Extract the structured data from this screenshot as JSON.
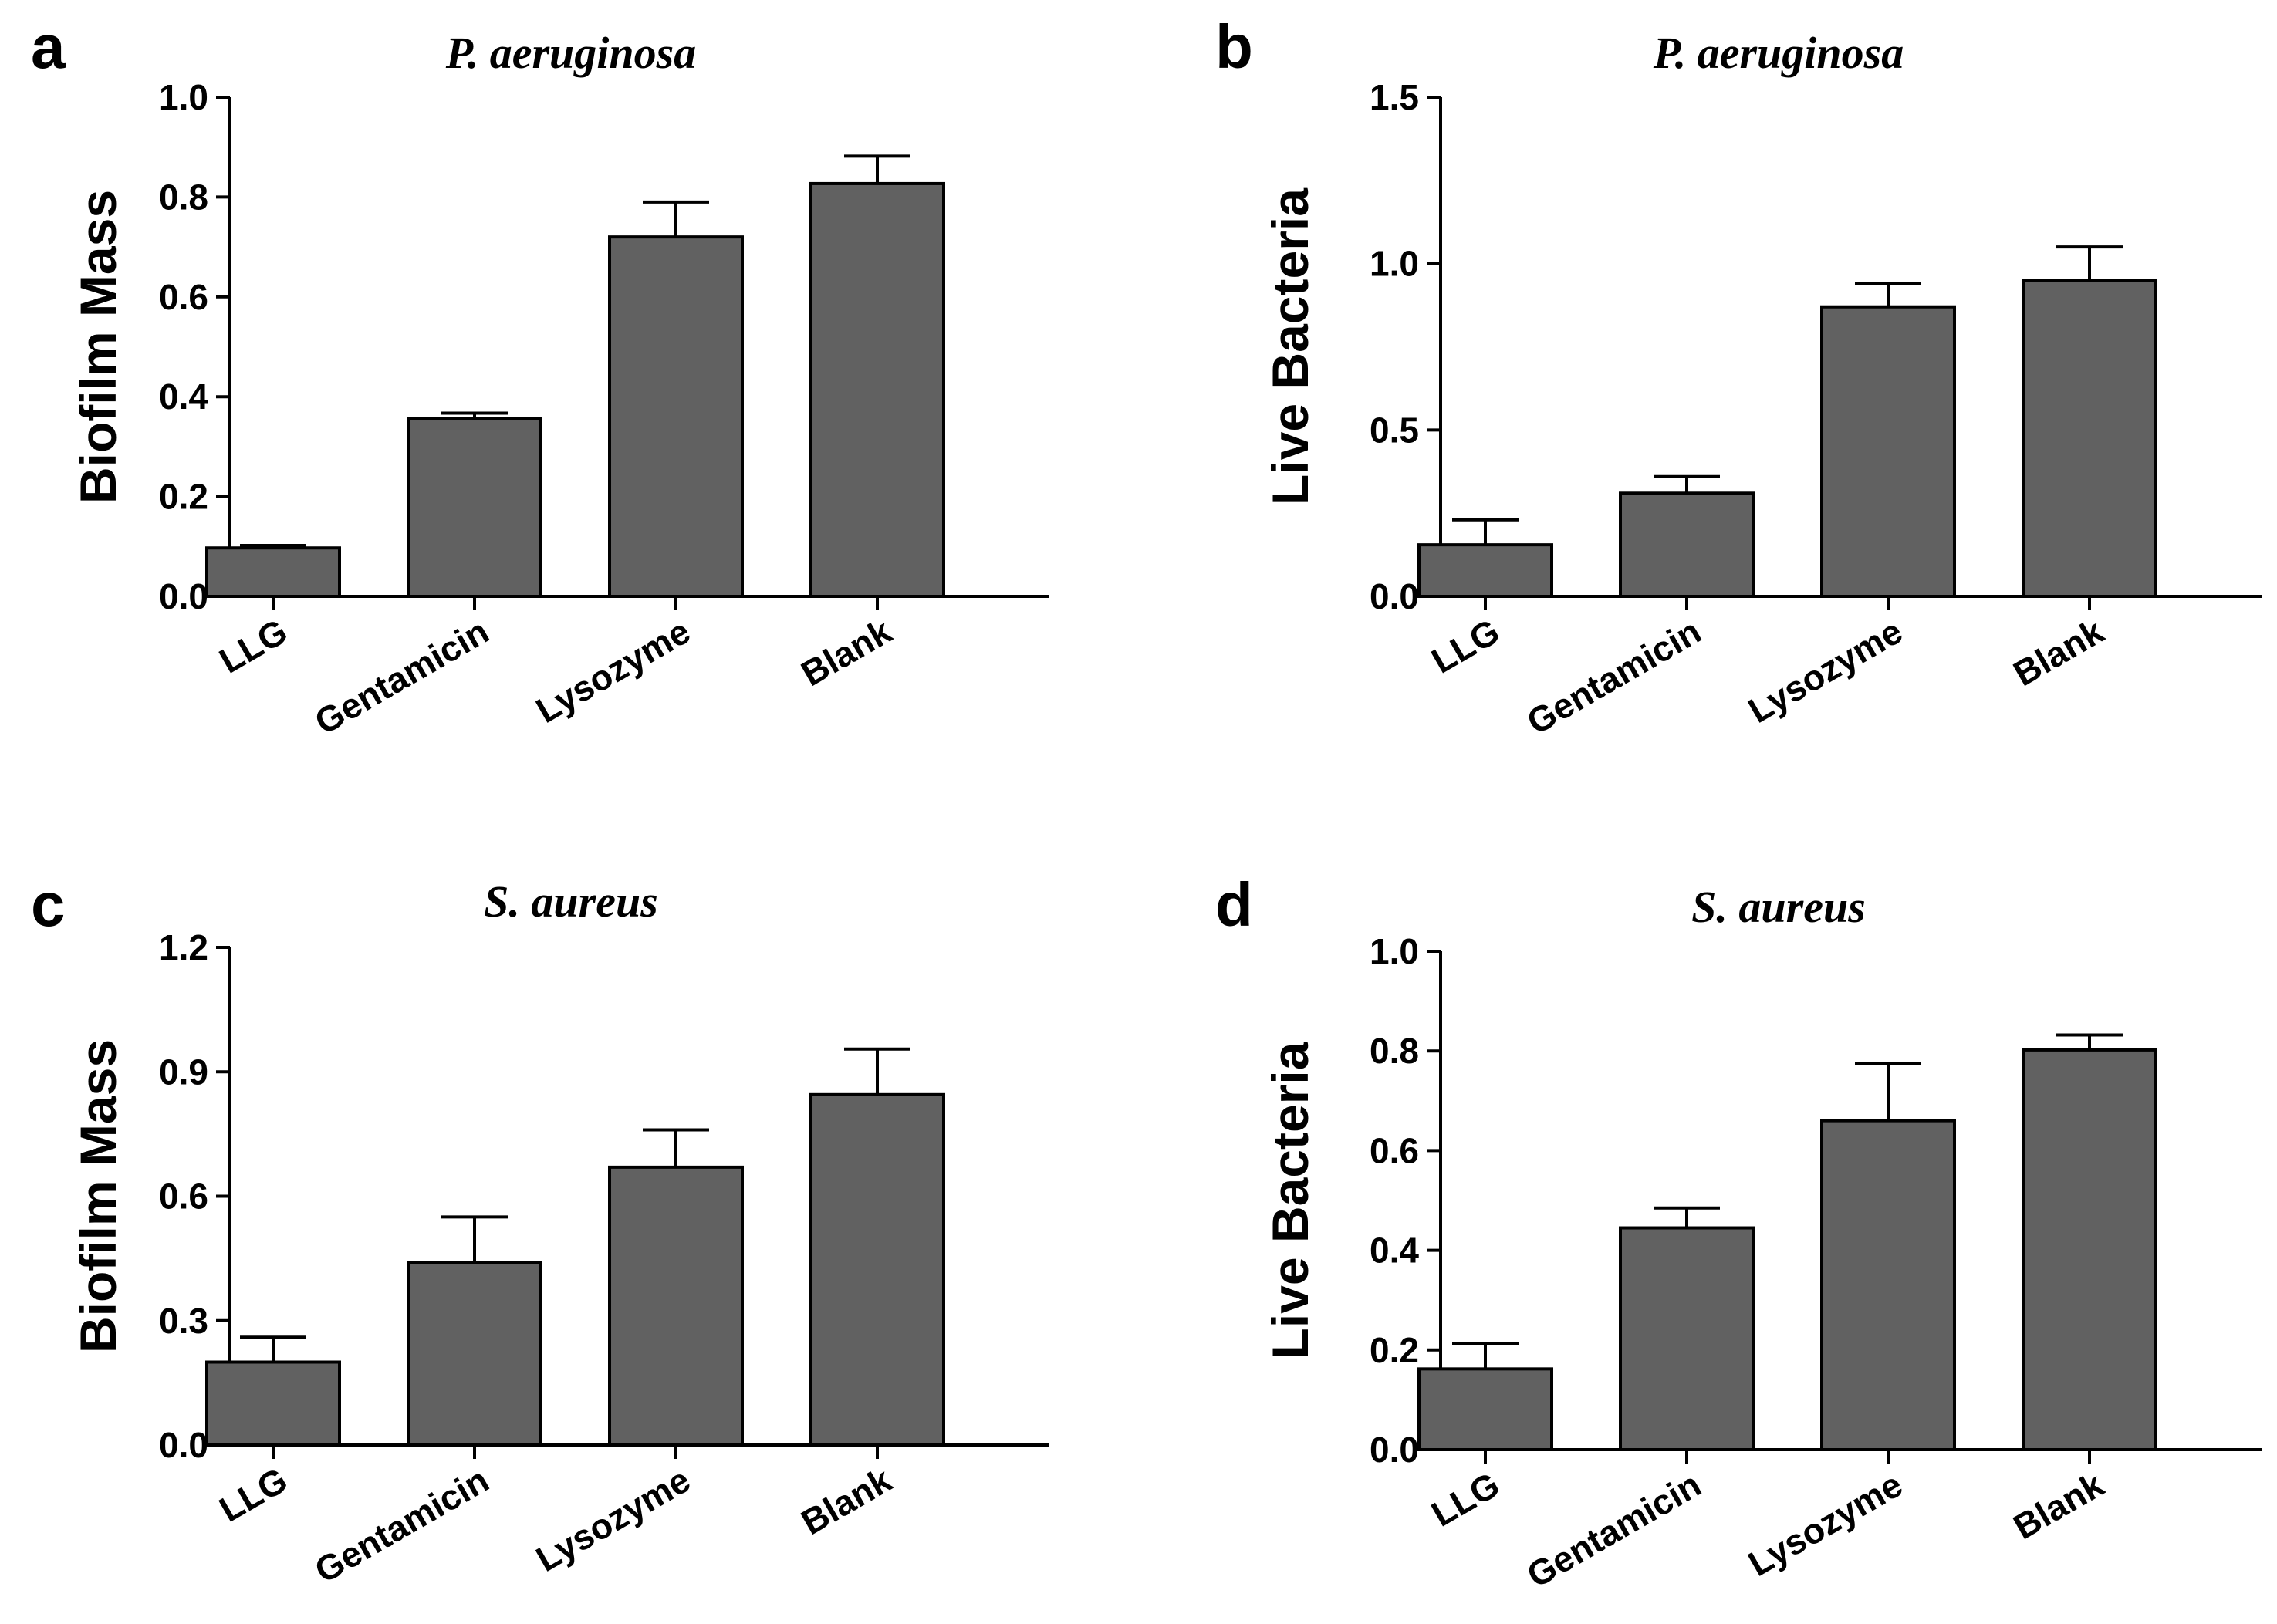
{
  "chart_data": [
    {
      "panel": "a",
      "type": "bar",
      "title": "P. aeruginosa",
      "xlabel": "",
      "ylabel": "Biofilm Mass",
      "categories": [
        "LLG",
        "Gentamicin",
        "Lysozyme",
        "Blank"
      ],
      "values": [
        0.097,
        0.357,
        0.72,
        0.827
      ],
      "errors": [
        0.005,
        0.01,
        0.07,
        0.055
      ],
      "ylim": [
        0,
        1.0
      ],
      "yticks": [
        "0.0",
        "0.2",
        "0.4",
        "0.6",
        "0.8",
        "1.0"
      ],
      "bar_color": "#616161"
    },
    {
      "panel": "b",
      "type": "bar",
      "title": "P. aeruginosa",
      "xlabel": "",
      "ylabel": "Live Bacteria",
      "categories": [
        "LLG",
        "Gentamicin",
        "Lysozyme",
        "Blank"
      ],
      "values": [
        0.155,
        0.31,
        0.87,
        0.95
      ],
      "errors": [
        0.075,
        0.05,
        0.07,
        0.1
      ],
      "ylim": [
        0,
        1.5
      ],
      "yticks": [
        "0.0",
        "0.5",
        "1.0",
        "1.5"
      ],
      "bar_color": "#616161"
    },
    {
      "panel": "c",
      "type": "bar",
      "title": "S. aureus",
      "xlabel": "",
      "ylabel": "Biofilm Mass",
      "categories": [
        "LLG",
        "Gentamicin",
        "Lysozyme",
        "Blank"
      ],
      "values": [
        0.2,
        0.44,
        0.67,
        0.845
      ],
      "errors": [
        0.06,
        0.11,
        0.09,
        0.11
      ],
      "ylim": [
        0,
        1.2
      ],
      "yticks": [
        "0.0",
        "0.3",
        "0.6",
        "0.9",
        "1.2"
      ],
      "bar_color": "#616161"
    },
    {
      "panel": "d",
      "type": "bar",
      "title": "S. aureus",
      "xlabel": "",
      "ylabel": "Live Bacteria",
      "categories": [
        "LLG",
        "Gentamicin",
        "Lysozyme",
        "Blank"
      ],
      "values": [
        0.162,
        0.445,
        0.66,
        0.802
      ],
      "errors": [
        0.05,
        0.04,
        0.115,
        0.03
      ],
      "ylim": [
        0,
        1.0
      ],
      "yticks": [
        "0.0",
        "0.2",
        "0.4",
        "0.6",
        "0.8",
        "1.0"
      ],
      "bar_color": "#616161"
    }
  ]
}
